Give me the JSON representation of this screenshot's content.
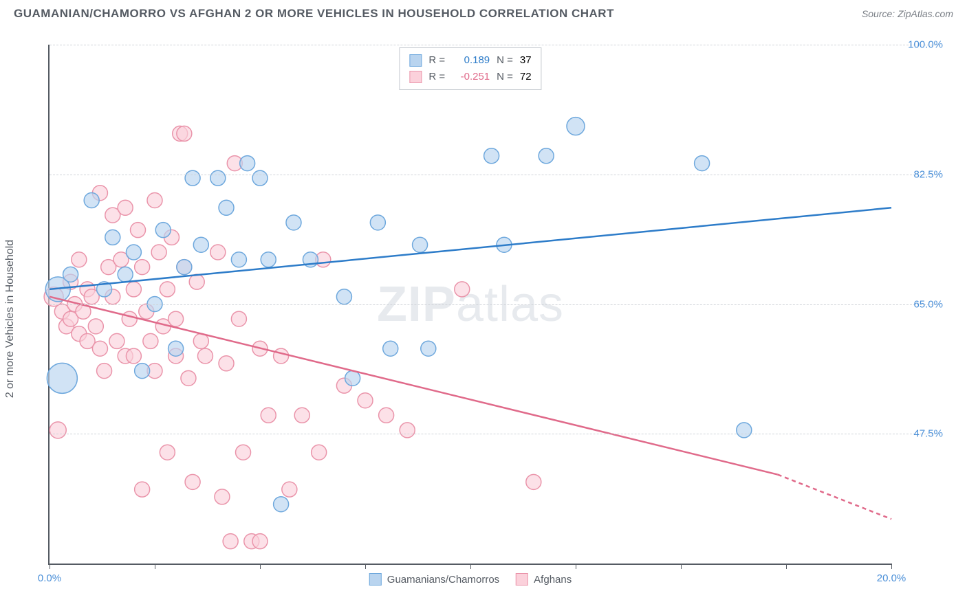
{
  "title": "GUAMANIAN/CHAMORRO VS AFGHAN 2 OR MORE VEHICLES IN HOUSEHOLD CORRELATION CHART",
  "source": "Source: ZipAtlas.com",
  "y_axis_label": "2 or more Vehicles in Household",
  "watermark": {
    "bold": "ZIP",
    "light": "atlas"
  },
  "chart": {
    "type": "scatter",
    "xlim": [
      0,
      20
    ],
    "ylim": [
      30,
      100
    ],
    "x_ticks": [
      0,
      2.5,
      5,
      7.5,
      10,
      12.5,
      15,
      17.5,
      20
    ],
    "x_tick_labels": {
      "0": "0.0%",
      "20": "20.0%"
    },
    "y_ticks": [
      47.5,
      65.0,
      82.5,
      100.0
    ],
    "y_tick_labels": [
      "47.5%",
      "65.0%",
      "82.5%",
      "100.0%"
    ],
    "background_color": "#ffffff",
    "grid_color": "#cfd3d8",
    "axis_color": "#555b63",
    "tick_label_color": "#4a8fd8"
  },
  "series": {
    "blue": {
      "label": "Guamanians/Chamorros",
      "R": "0.189",
      "N": "37",
      "fill": "#b9d4ef",
      "stroke": "#6ea8dd",
      "line_color": "#2d7cc9",
      "marker_r": 11,
      "trend": {
        "x1": 0,
        "y1": 67,
        "x2": 20,
        "y2": 78
      },
      "points": [
        [
          0.2,
          67,
          18
        ],
        [
          0.3,
          55,
          22
        ],
        [
          0.5,
          69,
          11
        ],
        [
          1.0,
          79,
          11
        ],
        [
          1.3,
          67,
          11
        ],
        [
          1.5,
          74,
          11
        ],
        [
          1.8,
          69,
          11
        ],
        [
          2.0,
          72,
          11
        ],
        [
          2.2,
          56,
          11
        ],
        [
          2.5,
          65,
          11
        ],
        [
          2.7,
          75,
          11
        ],
        [
          3.0,
          59,
          11
        ],
        [
          3.2,
          70,
          11
        ],
        [
          3.4,
          82,
          11
        ],
        [
          3.6,
          73,
          11
        ],
        [
          4.0,
          82,
          11
        ],
        [
          4.2,
          78,
          11
        ],
        [
          4.5,
          71,
          11
        ],
        [
          4.7,
          84,
          11
        ],
        [
          5.0,
          82,
          11
        ],
        [
          5.2,
          71,
          11
        ],
        [
          5.5,
          38,
          11
        ],
        [
          5.8,
          76,
          11
        ],
        [
          6.2,
          71,
          11
        ],
        [
          7.0,
          66,
          11
        ],
        [
          7.2,
          55,
          11
        ],
        [
          7.8,
          76,
          11
        ],
        [
          8.1,
          59,
          11
        ],
        [
          8.8,
          73,
          11
        ],
        [
          9.0,
          59,
          11
        ],
        [
          10.5,
          85,
          11
        ],
        [
          10.8,
          73,
          11
        ],
        [
          11.8,
          85,
          11
        ],
        [
          12.5,
          89,
          13
        ],
        [
          15.5,
          84,
          11
        ],
        [
          16.5,
          48,
          11
        ]
      ]
    },
    "pink": {
      "label": "Afghans",
      "R": "-0.251",
      "N": "72",
      "fill": "#fbd1db",
      "stroke": "#ea94aa",
      "line_color": "#e06a8a",
      "marker_r": 11,
      "trend": {
        "x1": 0,
        "y1": 66,
        "x2": 17.3,
        "y2": 42
      },
      "trend_dash": {
        "x1": 17.3,
        "y1": 42,
        "x2": 20,
        "y2": 36
      },
      "points": [
        [
          0.1,
          66,
          14
        ],
        [
          0.2,
          48,
          12
        ],
        [
          0.3,
          64,
          11
        ],
        [
          0.4,
          62,
          11
        ],
        [
          0.5,
          68,
          11
        ],
        [
          0.5,
          63,
          11
        ],
        [
          0.6,
          65,
          11
        ],
        [
          0.7,
          61,
          11
        ],
        [
          0.7,
          71,
          11
        ],
        [
          0.8,
          64,
          11
        ],
        [
          0.9,
          60,
          11
        ],
        [
          0.9,
          67,
          11
        ],
        [
          1.0,
          66,
          11
        ],
        [
          1.1,
          62,
          11
        ],
        [
          1.2,
          59,
          11
        ],
        [
          1.2,
          80,
          11
        ],
        [
          1.3,
          56,
          11
        ],
        [
          1.4,
          70,
          11
        ],
        [
          1.5,
          77,
          11
        ],
        [
          1.5,
          66,
          11
        ],
        [
          1.6,
          60,
          11
        ],
        [
          1.7,
          71,
          11
        ],
        [
          1.8,
          58,
          11
        ],
        [
          1.8,
          78,
          11
        ],
        [
          1.9,
          63,
          11
        ],
        [
          2.0,
          67,
          11
        ],
        [
          2.0,
          58,
          11
        ],
        [
          2.1,
          75,
          11
        ],
        [
          2.2,
          70,
          11
        ],
        [
          2.2,
          40,
          11
        ],
        [
          2.3,
          64,
          11
        ],
        [
          2.4,
          60,
          11
        ],
        [
          2.5,
          79,
          11
        ],
        [
          2.5,
          56,
          11
        ],
        [
          2.6,
          72,
          11
        ],
        [
          2.7,
          62,
          11
        ],
        [
          2.8,
          67,
          11
        ],
        [
          2.8,
          45,
          11
        ],
        [
          2.9,
          74,
          11
        ],
        [
          3.0,
          58,
          11
        ],
        [
          3.0,
          63,
          11
        ],
        [
          3.1,
          88,
          11
        ],
        [
          3.2,
          70,
          11
        ],
        [
          3.2,
          88,
          11
        ],
        [
          3.3,
          55,
          11
        ],
        [
          3.4,
          41,
          11
        ],
        [
          3.5,
          68,
          11
        ],
        [
          3.6,
          60,
          11
        ],
        [
          3.7,
          58,
          11
        ],
        [
          4.0,
          72,
          11
        ],
        [
          4.1,
          39,
          11
        ],
        [
          4.2,
          57,
          11
        ],
        [
          4.3,
          33,
          11
        ],
        [
          4.4,
          84,
          11
        ],
        [
          4.5,
          63,
          11
        ],
        [
          4.6,
          45,
          11
        ],
        [
          4.8,
          33,
          11
        ],
        [
          5.0,
          59,
          11
        ],
        [
          5.0,
          33,
          11
        ],
        [
          5.2,
          50,
          11
        ],
        [
          5.5,
          58,
          11
        ],
        [
          5.7,
          40,
          11
        ],
        [
          6.0,
          50,
          11
        ],
        [
          6.4,
          45,
          11
        ],
        [
          6.5,
          71,
          11
        ],
        [
          7.0,
          54,
          11
        ],
        [
          7.5,
          52,
          11
        ],
        [
          8.0,
          50,
          11
        ],
        [
          8.5,
          48,
          11
        ],
        [
          9.8,
          67,
          11
        ],
        [
          11.5,
          41,
          11
        ]
      ]
    }
  },
  "legend_top_label": {
    "R": "R =",
    "N": "N ="
  }
}
